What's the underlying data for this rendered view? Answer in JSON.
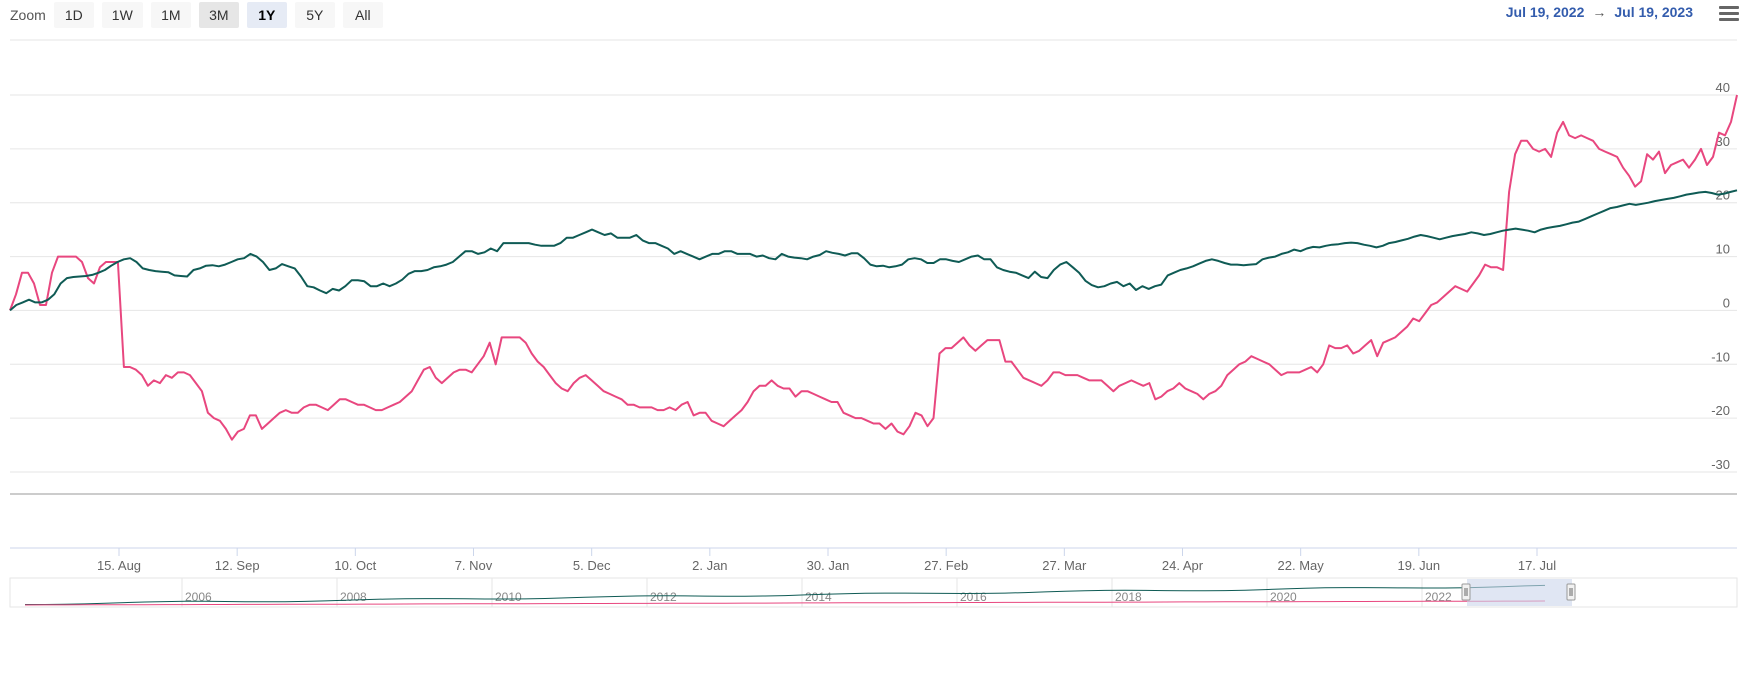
{
  "toolbar": {
    "zoom_label": "Zoom",
    "buttons": [
      {
        "label": "1D",
        "state": "normal"
      },
      {
        "label": "1W",
        "state": "normal"
      },
      {
        "label": "1M",
        "state": "normal"
      },
      {
        "label": "3M",
        "state": "dim"
      },
      {
        "label": "1Y",
        "state": "active"
      },
      {
        "label": "5Y",
        "state": "normal"
      },
      {
        "label": "All",
        "state": "normal"
      }
    ]
  },
  "range": {
    "from": "Jul 19, 2022",
    "arrow": "→",
    "to": "Jul 19, 2023"
  },
  "colors": {
    "series_pink": "#e8477f",
    "series_green": "#0f5b55",
    "grid": "#e6e6e6",
    "navigator_mask": "#ccd6eb"
  },
  "chart_data": {
    "type": "line",
    "x_ticks": [
      "15. Aug",
      "12. Sep",
      "10. Oct",
      "7. Nov",
      "5. Dec",
      "2. Jan",
      "30. Jan",
      "27. Feb",
      "27. Mar",
      "24. Apr",
      "22. May",
      "19. Jun",
      "17. Jul"
    ],
    "y_ticks": [
      "40",
      "30",
      "20",
      "10",
      "0",
      "-10",
      "-20",
      "-30"
    ],
    "ylim": [
      -30,
      40
    ],
    "grid": true,
    "series": [
      {
        "color": "#e8477f",
        "values": [
          0,
          3,
          7,
          7,
          5,
          1,
          1,
          7,
          10,
          10,
          10,
          10,
          9,
          6,
          5,
          8,
          9,
          9,
          9,
          -10.5,
          -10.5,
          -11,
          -12,
          -14,
          -13,
          -13.5,
          -12,
          -12.5,
          -11.5,
          -11.5,
          -12,
          -13.5,
          -15,
          -19,
          -20,
          -20.5,
          -22,
          -24,
          -22.5,
          -22,
          -19.5,
          -19.5,
          -22,
          -21,
          -20,
          -19,
          -18.5,
          -19,
          -19,
          -18,
          -17.5,
          -17.5,
          -18,
          -18.5,
          -17.5,
          -16.5,
          -16.5,
          -17,
          -17.5,
          -17.5,
          -18,
          -18.5,
          -18.5,
          -18,
          -17.5,
          -17,
          -16,
          -15,
          -13,
          -11,
          -10.5,
          -12.5,
          -13.5,
          -12.5,
          -11.5,
          -11,
          -11,
          -11.5,
          -10,
          -8.5,
          -6,
          -10,
          -5,
          -5,
          -5,
          -5,
          -6,
          -8,
          -9.5,
          -10.5,
          -12,
          -13.5,
          -14.5,
          -15,
          -13.5,
          -12.5,
          -12,
          -13,
          -14,
          -15,
          -15.5,
          -16,
          -16.5,
          -17.5,
          -17.5,
          -18,
          -18,
          -18,
          -18.5,
          -18.5,
          -18,
          -18.5,
          -17.5,
          -17,
          -19.5,
          -19,
          -19,
          -20.5,
          -21,
          -21.5,
          -20.5,
          -19.5,
          -18.5,
          -17,
          -15,
          -14,
          -14,
          -13,
          -14,
          -14.5,
          -14.5,
          -16,
          -15,
          -15,
          -15.5,
          -16,
          -16.5,
          -17,
          -17,
          -19,
          -19.5,
          -20,
          -20,
          -20.5,
          -21,
          -21,
          -22,
          -21,
          -22.5,
          -23,
          -21.5,
          -19,
          -19.5,
          -21.5,
          -20,
          -8,
          -7,
          -7,
          -6,
          -5,
          -6.5,
          -7.5,
          -6.5,
          -5.5,
          -5.5,
          -5.5,
          -9.5,
          -9.5,
          -11,
          -12.5,
          -13,
          -13.5,
          -14,
          -13,
          -11.5,
          -11.5,
          -12,
          -12,
          -12,
          -12.5,
          -13,
          -13,
          -13,
          -14,
          -15,
          -14,
          -13.5,
          -13,
          -13.5,
          -14,
          -13.5,
          -16.5,
          -16,
          -15,
          -14.5,
          -13.5,
          -14.5,
          -15,
          -15.5,
          -16.5,
          -15.5,
          -15,
          -14,
          -12,
          -11,
          -10,
          -9.5,
          -8.5,
          -9,
          -9.5,
          -10,
          -11,
          -12,
          -11.5,
          -11.5,
          -11.5,
          -11,
          -10.5,
          -11.5,
          -10,
          -6.5,
          -7,
          -7,
          -6.5,
          -8,
          -7.5,
          -6.5,
          -5.5,
          -8.5,
          -6,
          -5.5,
          -5,
          -4,
          -3,
          -1.5,
          -2,
          -0.5,
          1,
          1.5,
          2.5,
          3.5,
          4.5,
          4,
          3.5,
          5,
          6.5,
          8.5,
          8,
          8,
          7.5,
          22,
          29,
          31.5,
          31.5,
          30,
          29.5,
          30,
          28.5,
          33,
          35,
          32.5,
          32,
          32.5,
          32,
          31.5,
          30,
          29.5,
          29,
          28.5,
          26.5,
          25,
          23,
          24,
          29,
          28,
          29.5,
          25.5,
          27,
          27.5,
          28,
          26.5,
          28,
          30,
          27,
          28.5,
          33,
          32.5,
          35,
          40
        ]
      },
      {
        "color": "#0f5b55",
        "values": [
          0,
          1,
          1.5,
          2,
          1.5,
          1.5,
          2,
          3,
          5,
          6,
          6.2,
          6.3,
          6.4,
          6.6,
          7,
          7.5,
          8.3,
          9,
          9.5,
          9.7,
          9,
          7.8,
          7.5,
          7.3,
          7.2,
          7.1,
          6.5,
          6.4,
          6.3,
          7.5,
          7.8,
          8.3,
          8.4,
          8.2,
          8.5,
          9,
          9.5,
          9.7,
          10.5,
          10,
          9,
          7.5,
          7.8,
          8.6,
          8.2,
          7.8,
          6.3,
          4.5,
          4.3,
          3.7,
          3.2,
          4,
          3.7,
          4.5,
          5.6,
          5.6,
          5.4,
          4.5,
          4.5,
          5,
          4.5,
          5,
          5.7,
          6.8,
          7.3,
          7.3,
          7.5,
          8,
          8.2,
          8.5,
          9,
          10,
          11,
          11,
          10.5,
          10.8,
          11.5,
          11,
          12.5,
          12.5,
          12.5,
          12.5,
          12.5,
          12.2,
          12,
          12,
          12,
          12.5,
          13.5,
          13.5,
          14,
          14.5,
          15,
          14.5,
          14,
          14.3,
          13.5,
          13.5,
          13.5,
          14,
          13,
          12.5,
          12.5,
          12,
          11.5,
          10.5,
          11,
          10.5,
          10,
          9.5,
          10,
          10.5,
          10.5,
          11,
          11,
          10.5,
          10.5,
          10.5,
          10,
          10.2,
          9.7,
          9.5,
          10.5,
          10,
          9.8,
          9.7,
          9.5,
          10,
          10.3,
          11,
          10.7,
          10.5,
          10.2,
          10.6,
          10.6,
          9.7,
          8.5,
          8.2,
          8.3,
          8,
          8.2,
          8.5,
          9.5,
          9.7,
          9.5,
          8.8,
          8.8,
          9.5,
          9.5,
          9.2,
          9,
          9.5,
          10,
          10.2,
          9.5,
          9.5,
          8,
          7.5,
          7.2,
          7,
          6.5,
          6,
          7.2,
          6.2,
          6,
          7.5,
          8.5,
          9,
          8,
          7,
          5.5,
          4.7,
          4.3,
          4.5,
          5,
          5.3,
          4.5,
          5,
          3.8,
          4.5,
          4,
          4.5,
          4.8,
          6.5,
          7,
          7.5,
          7.8,
          8.2,
          8.7,
          9.2,
          9.5,
          9.2,
          8.8,
          8.5,
          8.5,
          8.4,
          8.5,
          8.6,
          9.5,
          9.8,
          10,
          10.5,
          10.8,
          11.3,
          11,
          11.5,
          11.8,
          11.7,
          12,
          12.2,
          12.3,
          12.5,
          12.6,
          12.5,
          12.2,
          12,
          11.7,
          12,
          12.5,
          12.7,
          13,
          13.3,
          13.7,
          14,
          13.8,
          13.5,
          13.2,
          13.5,
          13.8,
          14,
          14.2,
          14.5,
          14.3,
          14,
          14.2,
          14.5,
          14.8,
          15,
          15.2,
          15,
          14.8,
          14.5,
          15,
          15.3,
          15.5,
          15.7,
          16,
          16.3,
          16.5,
          17,
          17.5,
          18,
          18.5,
          19,
          19.2,
          19.5,
          19.8,
          19.6,
          19.8,
          20,
          20.3,
          20.5,
          20.7,
          20.9,
          21.2,
          21.5,
          21.7,
          21.9,
          22,
          21.8,
          21.5,
          21.7,
          22,
          22.3
        ]
      }
    ],
    "navigator": {
      "year_labels": [
        "2006",
        "2008",
        "2010",
        "2012",
        "2014",
        "2016",
        "2018",
        "2020",
        "2022"
      ]
    }
  }
}
